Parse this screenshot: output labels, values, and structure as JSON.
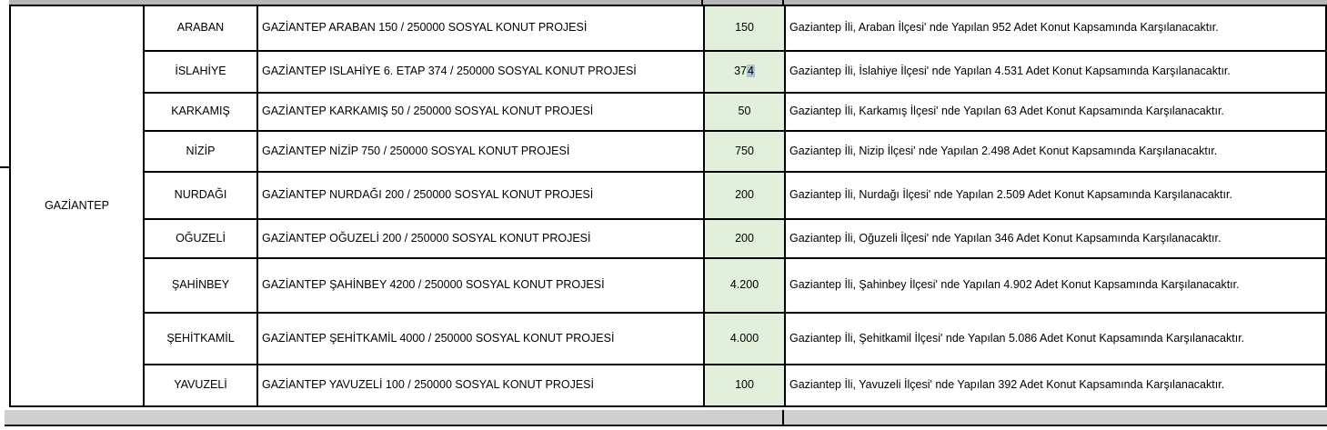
{
  "table": {
    "province": "GAZİANTEP",
    "rows": [
      {
        "district": "ARABAN",
        "project": "GAZİANTEP ARABAN 150 / 250000 SOSYAL KONUT PROJESİ",
        "count": "150",
        "description": "Gaziantep İli, Araban İlçesi' nde Yapılan 952 Adet Konut Kapsamında Karşılanacaktır."
      },
      {
        "district": "İSLAHİYE",
        "project": "GAZİANTEP ISLAHİYE 6. ETAP 374 / 250000 SOSYAL KONUT PROJESİ",
        "count": "374",
        "description": "Gaziantep İli, İslahiye İlçesi' nde Yapılan 4.531 Adet Konut Kapsamında Karşılanacaktır."
      },
      {
        "district": "KARKAMIŞ",
        "project": "GAZİANTEP KARKAMIŞ 50 / 250000 SOSYAL KONUT PROJESİ",
        "count": "50",
        "description": "Gaziantep İli, Karkamış İlçesi' nde Yapılan 63 Adet Konut Kapsamında Karşılanacaktır."
      },
      {
        "district": "NİZİP",
        "project": "GAZİANTEP NİZİP 750 / 250000 SOSYAL KONUT PROJESİ",
        "count": "750",
        "description": "Gaziantep İli, Nizip İlçesi' nde Yapılan 2.498 Adet Konut Kapsamında Karşılanacaktır."
      },
      {
        "district": "NURDAĞI",
        "project": "GAZİANTEP NURDAĞI 200 / 250000 SOSYAL KONUT PROJESİ",
        "count": "200",
        "description": "Gaziantep İli, Nurdağı İlçesi' nde Yapılan 2.509 Adet Konut Kapsamında Karşılanacaktır."
      },
      {
        "district": "OĞUZELİ",
        "project": "GAZİANTEP OĞUZELİ 200 / 250000 SOSYAL KONUT PROJESİ",
        "count": "200",
        "description": "Gaziantep İli, Oğuzeli İlçesi' nde Yapılan 346 Adet Konut Kapsamında Karşılanacaktır."
      },
      {
        "district": "ŞAHİNBEY",
        "project": "GAZİANTEP ŞAHİNBEY 4200 / 250000 SOSYAL KONUT PROJESİ",
        "count": "4.200",
        "description": "Gaziantep İli, Şahinbey İlçesi' nde Yapılan 4.902 Adet Konut Kapsamında Karşılanacaktır."
      },
      {
        "district": "ŞEHİTKAMİL",
        "project": "GAZİANTEP ŞEHİTKAMİL 4000 / 250000 SOSYAL KONUT PROJESİ",
        "count": "4.000",
        "description": "Gaziantep İli, Şehitkamil İlçesi' nde Yapılan 5.086 Adet Konut Kapsamında Karşılanacaktır."
      },
      {
        "district": "YAVUZELİ",
        "project": "GAZİANTEP YAVUZELİ 100 / 250000 SOSYAL KONUT PROJESİ",
        "count": "100",
        "description": "Gaziantep İli, Yavuzeli İlçesi' nde Yapılan 392 Adet Konut Kapsamında Karşılanacaktır."
      }
    ]
  },
  "cell_selection": {
    "row_index": 1,
    "count_before": "37",
    "count_selected": "4"
  },
  "colors": {
    "count_fill": "#e2efda",
    "selection_highlight": "#a9c2d6",
    "top_strip_fill": "#b7b7b7",
    "bottom_strip_fill": "#d0cece",
    "border": "#000000"
  }
}
